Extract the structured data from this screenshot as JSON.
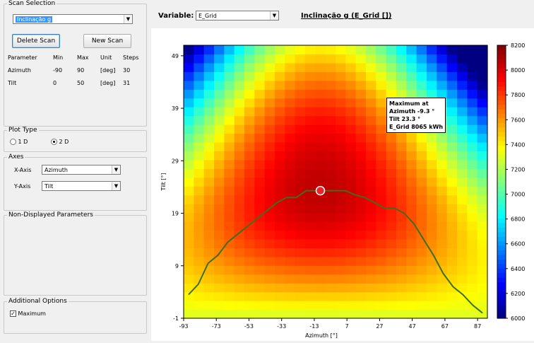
{
  "scan_selection": {
    "title": "Scan Selection",
    "selected": "Inclinação g",
    "delete_button": "Delete Scan",
    "new_button": "New Scan",
    "headers": [
      "Parameter",
      "Min",
      "Max",
      "Unit",
      "Steps"
    ],
    "rows": [
      [
        "Azimuth",
        "-90",
        "90",
        "[deg]",
        "30"
      ],
      [
        "Tilt",
        "0",
        "50",
        "[deg]",
        "31"
      ]
    ]
  },
  "plot_type": {
    "title": "Plot Type",
    "option_1d": "1 D",
    "option_2d": "2 D",
    "selected": "2D"
  },
  "axes": {
    "title": "Axes",
    "x_label": "X-Axis",
    "x_value": "Azimuth",
    "y_label": "Y-Axis",
    "y_value": "Tilt"
  },
  "non_displayed": {
    "title": "Non-Displayed Parameters"
  },
  "additional_options": {
    "title": "Additional Options",
    "maximum_label": "Maximum",
    "maximum_checked": true
  },
  "header": {
    "variable_label": "Variable:",
    "variable_value": "E_Grid",
    "plot_title": "Inclinação g (E_Grid [])"
  },
  "chart_data": {
    "type": "heatmap",
    "xlabel": "Azimuth [°]",
    "ylabel": "Tilt [°]",
    "x_ticks": [
      -93,
      -73,
      -53,
      -33,
      -13,
      7,
      27,
      47,
      67,
      87
    ],
    "y_ticks": [
      -1,
      9,
      19,
      29,
      39,
      49
    ],
    "xlim": [
      -93,
      93
    ],
    "ylim": [
      -1,
      51
    ],
    "colorbar_ticks": [
      6000,
      6200,
      6400,
      6600,
      6800,
      7000,
      7200,
      7400,
      7600,
      7800,
      8000,
      8200
    ],
    "colorbar_range": [
      6000,
      8200
    ],
    "max_point": {
      "azimuth": -9.3,
      "tilt": 23.3,
      "value": 8065
    },
    "annotation": [
      "Maximum at",
      "Azimuth -9.3 °",
      "Tilt 23.3 °",
      "E_Grid 8065 kWh"
    ],
    "optimal_tilt_line": {
      "x": [
        -90,
        -84,
        -78,
        -72,
        -66,
        -60,
        -54,
        -48,
        -42,
        -36,
        -30,
        -24,
        -18,
        -12,
        -6,
        0,
        6,
        12,
        18,
        24,
        30,
        36,
        42,
        48,
        54,
        60,
        66,
        72,
        78,
        84,
        90
      ],
      "y": [
        3.5,
        5.5,
        9.5,
        11,
        13.5,
        15,
        16.5,
        18,
        19.5,
        21,
        22,
        22,
        23.3,
        23.3,
        23.3,
        23.3,
        23.3,
        22.5,
        22,
        21,
        20,
        20,
        19,
        17,
        14,
        11,
        7.5,
        5,
        3.5,
        1.5,
        0
      ]
    }
  }
}
